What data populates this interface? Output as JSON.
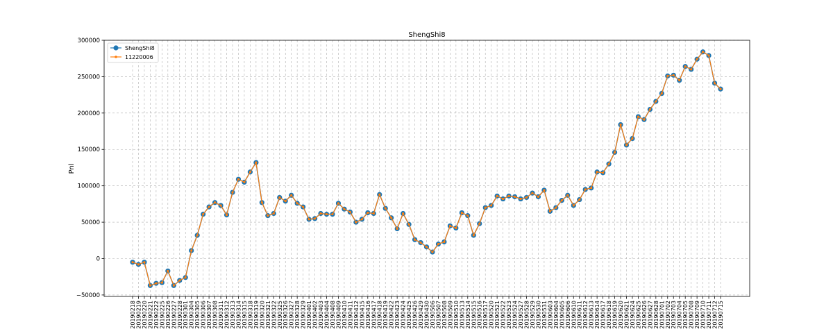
{
  "chart_data": {
    "type": "line",
    "title": "ShengShi8",
    "xlabel": "",
    "ylabel": "Pnl",
    "ylim": [
      -52000,
      300000
    ],
    "yticks": [
      -50000,
      0,
      50000,
      100000,
      150000,
      200000,
      250000,
      300000
    ],
    "grid": true,
    "legend_position": "top-left",
    "x": [
      "20190218",
      "20190219",
      "20190220",
      "20190221",
      "20190222",
      "20190225",
      "20190226",
      "20190227",
      "20190228",
      "20190301",
      "20190304",
      "20190305",
      "20190306",
      "20190307",
      "20190308",
      "20190311",
      "20190312",
      "20190313",
      "20190314",
      "20190315",
      "20190318",
      "20190319",
      "20190320",
      "20190321",
      "20190322",
      "20190325",
      "20190326",
      "20190327",
      "20190328",
      "20190329",
      "20190401",
      "20190402",
      "20190403",
      "20190404",
      "20190408",
      "20190409",
      "20190410",
      "20190411",
      "20190412",
      "20190415",
      "20190416",
      "20190417",
      "20190418",
      "20190419",
      "20190422",
      "20190423",
      "20190424",
      "20190425",
      "20190426",
      "20190429",
      "20190430",
      "20190506",
      "20190507",
      "20190508",
      "20190509",
      "20190510",
      "20190513",
      "20190514",
      "20190515",
      "20190516",
      "20190517",
      "20190520",
      "20190521",
      "20190522",
      "20190523",
      "20190524",
      "20190527",
      "20190528",
      "20190529",
      "20190530",
      "20190531",
      "20190603",
      "20190604",
      "20190605",
      "20190606",
      "20190610",
      "20190611",
      "20190612",
      "20190613",
      "20190614",
      "20190617",
      "20190618",
      "20190619",
      "20190620",
      "20190621",
      "20190624",
      "20190625",
      "20190626",
      "20190627",
      "20190628",
      "20190701",
      "20190702",
      "20190703",
      "20190704",
      "20190705",
      "20190708",
      "20190709",
      "20190710",
      "20190711",
      "20190712",
      "20190715"
    ],
    "series": [
      {
        "name": "ShengShi8",
        "color": "#1f77b4",
        "marker": "circle-large",
        "values": [
          -5000,
          -8000,
          -5000,
          -37000,
          -34000,
          -33000,
          -17000,
          -37000,
          -30000,
          -26000,
          11000,
          32000,
          61000,
          71000,
          77000,
          73000,
          60000,
          91000,
          109000,
          105000,
          119000,
          132000,
          77000,
          59000,
          62000,
          84000,
          79000,
          87000,
          76000,
          71000,
          54000,
          55000,
          62000,
          61000,
          61000,
          76000,
          68000,
          64000,
          50000,
          54000,
          63000,
          62000,
          88000,
          69000,
          56000,
          41000,
          62000,
          47000,
          26000,
          22000,
          16000,
          9000,
          20000,
          23000,
          45000,
          42000,
          63000,
          59000,
          32000,
          48000,
          70000,
          73000,
          86000,
          82000,
          86000,
          85000,
          82000,
          84000,
          90000,
          85000,
          94000,
          65000,
          70000,
          80000,
          87000,
          73000,
          81000,
          95000,
          97000,
          119000,
          118000,
          130000,
          146000,
          184000,
          156000,
          165000,
          195000,
          191000,
          205000,
          216000,
          227000,
          251000,
          252000,
          245000,
          264000,
          260000,
          274000,
          284000,
          279000,
          241000,
          233000
        ]
      },
      {
        "name": "11220006",
        "color": "#ff7f0e",
        "marker": "circle-small",
        "values": [
          -5000,
          -8000,
          -5000,
          -37000,
          -34000,
          -33000,
          -17000,
          -37000,
          -30000,
          -26000,
          11000,
          32000,
          61000,
          71000,
          77000,
          73000,
          60000,
          91000,
          109000,
          105000,
          119000,
          132000,
          77000,
          59000,
          62000,
          84000,
          79000,
          87000,
          76000,
          71000,
          54000,
          55000,
          62000,
          61000,
          61000,
          76000,
          68000,
          64000,
          50000,
          54000,
          63000,
          62000,
          88000,
          69000,
          56000,
          41000,
          62000,
          47000,
          26000,
          22000,
          16000,
          9000,
          20000,
          23000,
          45000,
          42000,
          63000,
          59000,
          32000,
          48000,
          70000,
          73000,
          86000,
          82000,
          86000,
          85000,
          82000,
          84000,
          90000,
          85000,
          94000,
          65000,
          70000,
          80000,
          87000,
          73000,
          81000,
          95000,
          97000,
          119000,
          118000,
          130000,
          146000,
          184000,
          156000,
          165000,
          195000,
          191000,
          205000,
          216000,
          227000,
          251000,
          252000,
          245000,
          264000,
          260000,
          274000,
          284000,
          279000,
          241000,
          233000
        ]
      }
    ]
  }
}
